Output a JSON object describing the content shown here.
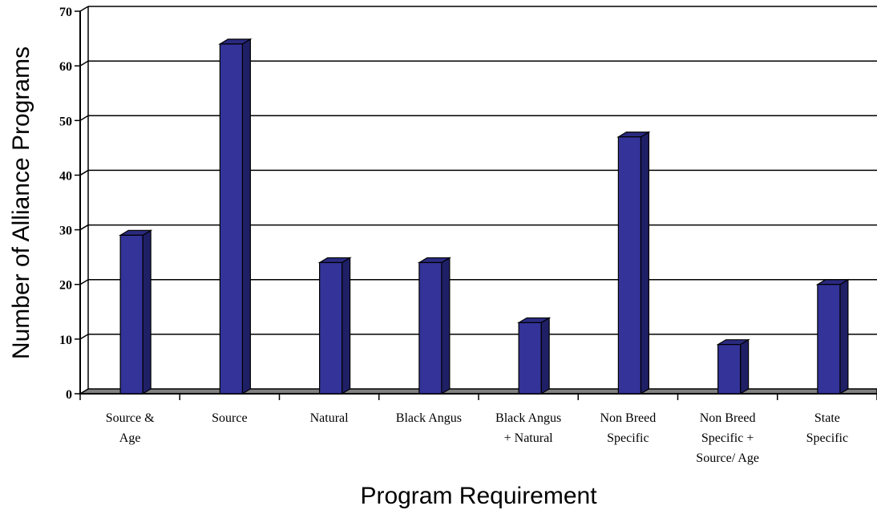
{
  "chart_data": {
    "type": "bar",
    "title": "",
    "xlabel": "Program Requirement",
    "ylabel": "Number of Alliance Programs",
    "categories": [
      [
        "Source &",
        "Age"
      ],
      [
        "Source"
      ],
      [
        "Natural"
      ],
      [
        "Black Angus"
      ],
      [
        "Black Angus",
        "+ Natural"
      ],
      [
        "Non Breed",
        "Specific"
      ],
      [
        "Non Breed",
        "Specific +",
        "Source/ Age"
      ],
      [
        "State",
        "Specific"
      ]
    ],
    "values": [
      29,
      64,
      24,
      24,
      13,
      47,
      9,
      20
    ],
    "ylim": [
      0,
      70
    ],
    "yticks": [
      0,
      10,
      20,
      30,
      40,
      50,
      60,
      70
    ],
    "grid": true,
    "legend": "none",
    "colors": {
      "bar_front": "#333399",
      "bar_side": "#1f1f66",
      "bar_top": "#2a2a80",
      "floor": "#808080",
      "grid": "#000000"
    }
  }
}
